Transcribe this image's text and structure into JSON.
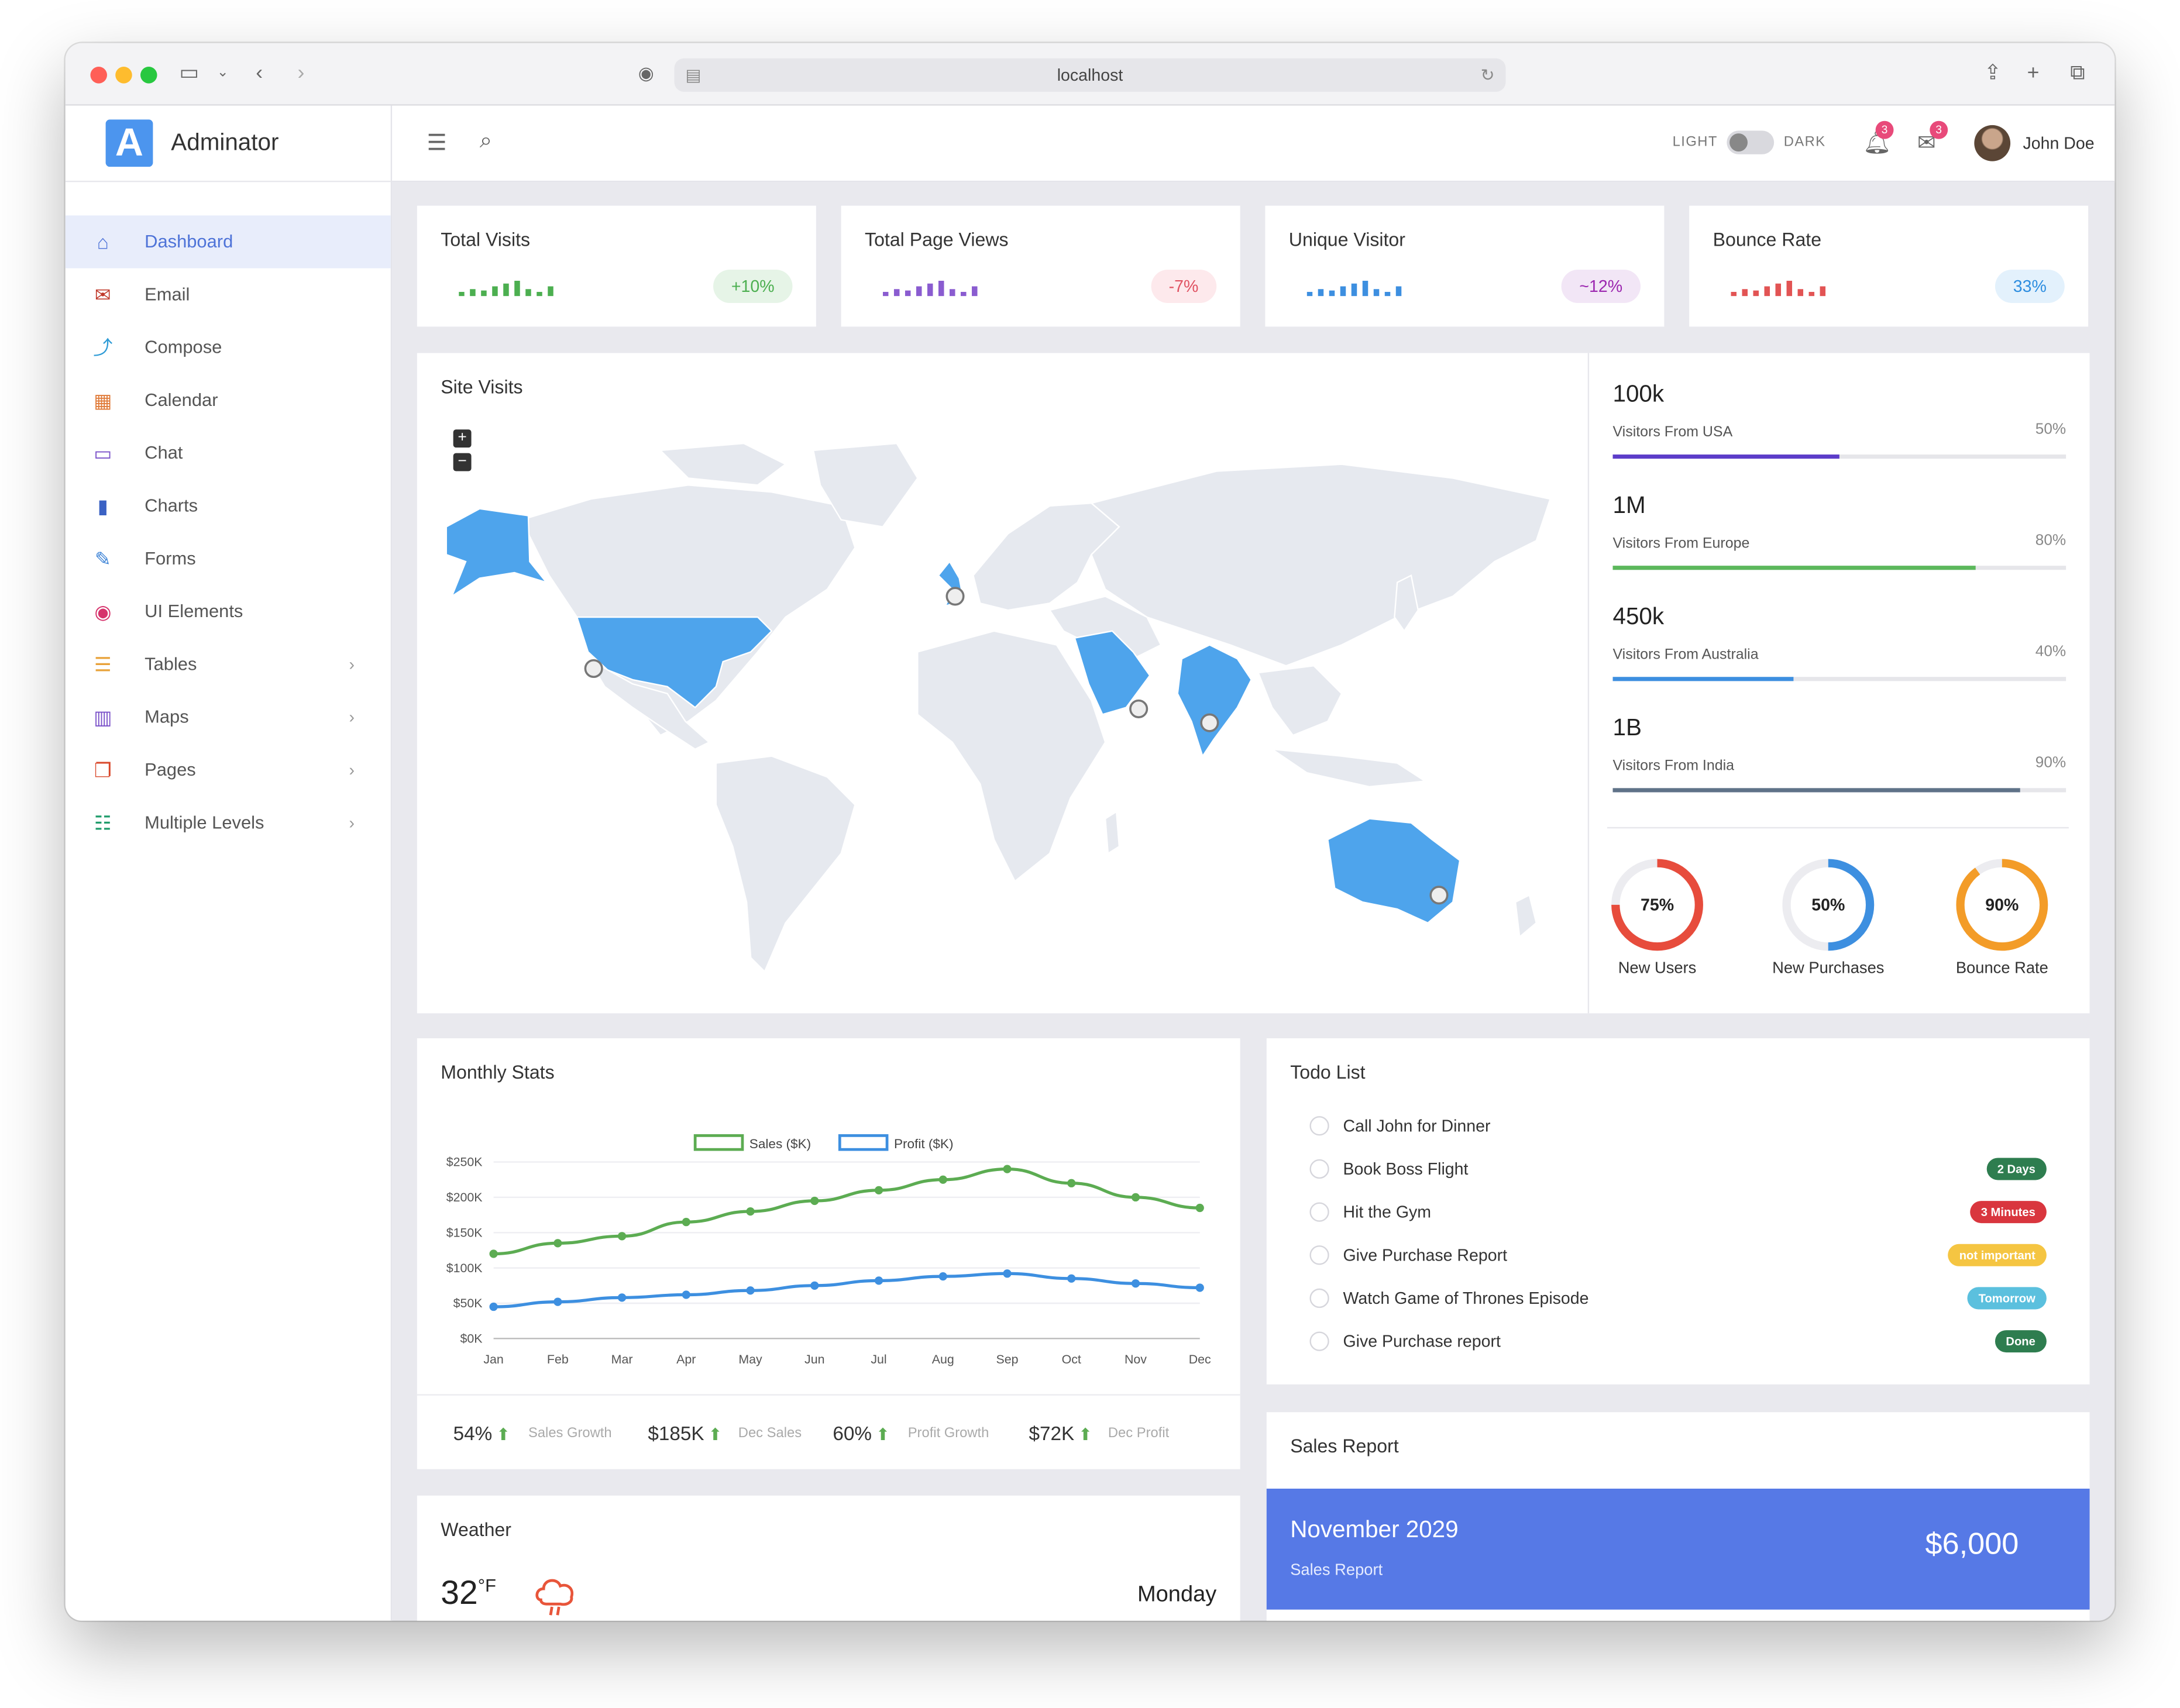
{
  "browser": {
    "url": "localhost"
  },
  "brand": {
    "logo_letter": "A",
    "name": "Adminator"
  },
  "sidebar": {
    "items": [
      {
        "label": "Dashboard",
        "icon": "home-icon",
        "glyph": "⌂",
        "color": "#4e73d8",
        "active": true,
        "chevron": false
      },
      {
        "label": "Email",
        "icon": "mail-icon",
        "glyph": "✉",
        "color": "#c0392b",
        "active": false,
        "chevron": false
      },
      {
        "label": "Compose",
        "icon": "share-icon",
        "glyph": "⤴",
        "color": "#2e9bd6",
        "active": false,
        "chevron": false
      },
      {
        "label": "Calendar",
        "icon": "calendar-icon",
        "glyph": "▦",
        "color": "#e07b39",
        "active": false,
        "chevron": false
      },
      {
        "label": "Chat",
        "icon": "chat-icon",
        "glyph": "▭",
        "color": "#7b52c9",
        "active": false,
        "chevron": false
      },
      {
        "label": "Charts",
        "icon": "bar-chart-icon",
        "glyph": "▮",
        "color": "#3b62c4",
        "active": false,
        "chevron": false
      },
      {
        "label": "Forms",
        "icon": "pencil-icon",
        "glyph": "✎",
        "color": "#3b82d6",
        "active": false,
        "chevron": false
      },
      {
        "label": "UI Elements",
        "icon": "palette-icon",
        "glyph": "◉",
        "color": "#d6336c",
        "active": false,
        "chevron": false
      },
      {
        "label": "Tables",
        "icon": "tables-icon",
        "glyph": "☰",
        "color": "#e8a23a",
        "active": false,
        "chevron": true
      },
      {
        "label": "Maps",
        "icon": "map-icon",
        "glyph": "▥",
        "color": "#7b52c9",
        "active": false,
        "chevron": true
      },
      {
        "label": "Pages",
        "icon": "pages-icon",
        "glyph": "❐",
        "color": "#d9482b",
        "active": false,
        "chevron": true
      },
      {
        "label": "Multiple Levels",
        "icon": "list-icon",
        "glyph": "☷",
        "color": "#1f9c6b",
        "active": false,
        "chevron": true
      }
    ]
  },
  "topbar": {
    "light_label": "LIGHT",
    "dark_label": "DARK",
    "notifications_count": "3",
    "messages_count": "3",
    "user_name": "John Doe"
  },
  "stats": [
    {
      "title": "Total Visits",
      "value": "+10%",
      "pill_bg": "#e6f4e7",
      "pill_color": "#4caf50",
      "bar_color": "#4caf50",
      "bars": [
        3,
        5,
        4,
        7,
        9,
        11,
        5,
        3,
        7
      ]
    },
    {
      "title": "Total Page Views",
      "value": "-7%",
      "pill_bg": "#fde9ec",
      "pill_color": "#e05262",
      "bar_color": "#8a5cd0",
      "bars": [
        3,
        5,
        4,
        7,
        9,
        11,
        5,
        3,
        7
      ]
    },
    {
      "title": "Unique Visitor",
      "value": "~12%",
      "pill_bg": "#f2e6f6",
      "pill_color": "#9c27b0",
      "bar_color": "#3d8fe0",
      "bars": [
        3,
        5,
        4,
        7,
        9,
        11,
        5,
        3,
        7
      ]
    },
    {
      "title": "Bounce Rate",
      "value": "33%",
      "pill_bg": "#e3f1fc",
      "pill_color": "#2e8ee0",
      "bar_color": "#e25454",
      "bars": [
        3,
        5,
        4,
        7,
        9,
        11,
        5,
        3,
        7
      ]
    }
  ],
  "site_visits": {
    "title": "Site Visits",
    "zoom_in": "+",
    "zoom_out": "−",
    "regions": [
      {
        "value": "100k",
        "label": "Visitors From USA",
        "percent": "50%",
        "fraction": 0.5,
        "color": "#5c3dc9"
      },
      {
        "value": "1M",
        "label": "Visitors From Europe",
        "percent": "80%",
        "fraction": 0.8,
        "color": "#5cb85c"
      },
      {
        "value": "450k",
        "label": "Visitors From Australia",
        "percent": "40%",
        "fraction": 0.4,
        "color": "#3d8fe0"
      },
      {
        "value": "1B",
        "label": "Visitors From India",
        "percent": "90%",
        "fraction": 0.9,
        "color": "#5f7288"
      }
    ],
    "donuts": [
      {
        "value": "75%",
        "fraction": 0.75,
        "label": "New Users",
        "color": "#e74c3c"
      },
      {
        "value": "50%",
        "fraction": 0.5,
        "label": "New Purchases",
        "color": "#3d8fe0"
      },
      {
        "value": "90%",
        "fraction": 0.9,
        "label": "Bounce Rate",
        "color": "#f39c28"
      }
    ]
  },
  "monthly_stats": {
    "title": "Monthly Stats",
    "summary": [
      {
        "value": "54%",
        "label": "Sales Growth"
      },
      {
        "value": "$185K",
        "label": "Dec Sales"
      },
      {
        "value": "60%",
        "label": "Profit Growth"
      },
      {
        "value": "$72K",
        "label": "Dec Profit"
      }
    ]
  },
  "chart_data": {
    "type": "line",
    "title": "",
    "xlabel": "",
    "ylabel": "",
    "categories": [
      "Jan",
      "Feb",
      "Mar",
      "Apr",
      "May",
      "Jun",
      "Jul",
      "Aug",
      "Sep",
      "Oct",
      "Nov",
      "Dec"
    ],
    "y_ticks": [
      "$0K",
      "$50K",
      "$100K",
      "$150K",
      "$200K",
      "$250K"
    ],
    "ylim": [
      0,
      250
    ],
    "grid": true,
    "legend_position": "top",
    "series": [
      {
        "name": "Sales ($K)",
        "color": "#5cac52",
        "values": [
          120,
          135,
          145,
          165,
          180,
          195,
          210,
          225,
          240,
          220,
          200,
          185
        ]
      },
      {
        "name": "Profit ($K)",
        "color": "#3d8fe0",
        "values": [
          45,
          52,
          58,
          62,
          68,
          75,
          82,
          88,
          92,
          85,
          78,
          72
        ]
      }
    ]
  },
  "todo": {
    "title": "Todo List",
    "items": [
      {
        "text": "Call John for Dinner",
        "badge": "",
        "badge_color": ""
      },
      {
        "text": "Book Boss Flight",
        "badge": "2 Days",
        "badge_color": "#2e7d4f"
      },
      {
        "text": "Hit the Gym",
        "badge": "3 Minutes",
        "badge_color": "#d9363e"
      },
      {
        "text": "Give Purchase Report",
        "badge": "not important",
        "badge_color": "#f5c542"
      },
      {
        "text": "Watch Game of Thrones Episode",
        "badge": "Tomorrow",
        "badge_color": "#5bc0de"
      },
      {
        "text": "Give Purchase report",
        "badge": "Done",
        "badge_color": "#2e7d4f"
      }
    ]
  },
  "sales_report": {
    "title": "Sales Report",
    "month": "November 2029",
    "subtitle": "Sales Report",
    "amount": "$6,000"
  },
  "weather": {
    "title": "Weather",
    "temperature": "32",
    "unit": "°F",
    "day": "Monday"
  }
}
